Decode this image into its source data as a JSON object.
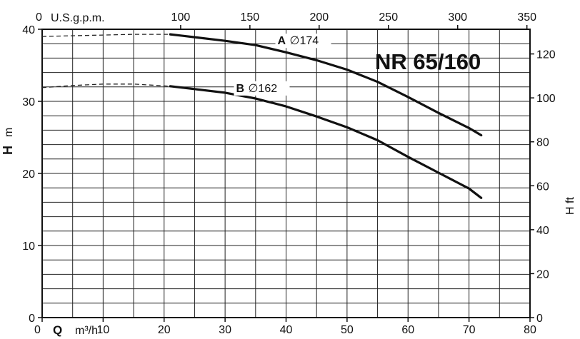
{
  "chart_data": {
    "type": "line",
    "title": "NR 65/160",
    "x_axis": {
      "symbol": "Q",
      "unit": "m³/h",
      "range": [
        0,
        80
      ],
      "major_ticks": [
        0,
        10,
        20,
        30,
        40,
        50,
        60,
        70,
        80
      ],
      "minor_step": 5
    },
    "x2_axis": {
      "label": "U.S.g.p.m.",
      "ticks": [
        0,
        100,
        150,
        200,
        250,
        300,
        350
      ],
      "factor_per_m3h": 4.4029
    },
    "y_axis": {
      "symbol": "H",
      "unit": "m",
      "range": [
        0,
        40
      ],
      "major_ticks": [
        0,
        10,
        20,
        30,
        40
      ],
      "minor_step": 2
    },
    "y2_axis": {
      "label": "H ft",
      "ticks": [
        0,
        20,
        40,
        60,
        80,
        100,
        120
      ],
      "factor_per_m": 3.2808
    },
    "grid": true,
    "series": [
      {
        "name": "A",
        "diameter": "∅174",
        "dashed_to": 21,
        "points": [
          [
            0,
            39.0
          ],
          [
            5,
            39.1
          ],
          [
            10,
            39.2
          ],
          [
            15,
            39.3
          ],
          [
            21,
            39.3
          ],
          [
            25,
            38.9
          ],
          [
            30,
            38.4
          ],
          [
            35,
            37.8
          ],
          [
            40,
            36.8
          ],
          [
            45,
            35.7
          ],
          [
            50,
            34.4
          ],
          [
            55,
            32.7
          ],
          [
            60,
            30.6
          ],
          [
            65,
            28.4
          ],
          [
            70,
            26.3
          ],
          [
            72,
            25.3
          ]
        ]
      },
      {
        "name": "B",
        "diameter": "∅162",
        "dashed_to": 21,
        "points": [
          [
            0,
            31.9
          ],
          [
            5,
            32.2
          ],
          [
            10,
            32.4
          ],
          [
            15,
            32.4
          ],
          [
            21,
            32.1
          ],
          [
            25,
            31.7
          ],
          [
            30,
            31.2
          ],
          [
            35,
            30.4
          ],
          [
            40,
            29.3
          ],
          [
            45,
            27.9
          ],
          [
            50,
            26.4
          ],
          [
            55,
            24.6
          ],
          [
            60,
            22.3
          ],
          [
            65,
            20.1
          ],
          [
            70,
            17.9
          ],
          [
            72,
            16.6
          ]
        ]
      }
    ]
  }
}
